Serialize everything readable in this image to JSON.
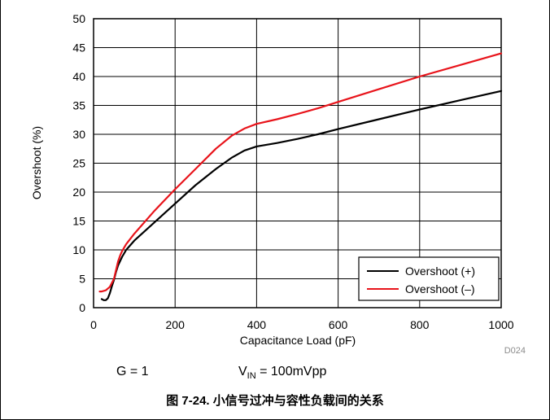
{
  "chart_data": {
    "type": "line",
    "xlabel": "Capacitance Load (pF)",
    "ylabel": "Overshoot (%)",
    "xlim": [
      0,
      1000
    ],
    "ylim": [
      0,
      50
    ],
    "x_ticks": [
      "0",
      "200",
      "400",
      "600",
      "800",
      "1000"
    ],
    "y_ticks": [
      "0",
      "5",
      "10",
      "15",
      "20",
      "25",
      "30",
      "35",
      "40",
      "45",
      "50"
    ],
    "grid": true,
    "legend_position": "bottom-right",
    "figure_code": "D024",
    "series": [
      {
        "name": "Overshoot (+)",
        "color": "#000000",
        "x": [
          20,
          25,
          30,
          35,
          40,
          45,
          50,
          55,
          60,
          70,
          80,
          100,
          150,
          200,
          250,
          300,
          340,
          370,
          400,
          450,
          500,
          550,
          600,
          700,
          800,
          900,
          1000
        ],
        "y": [
          1.5,
          1.3,
          1.3,
          1.6,
          2.5,
          3.7,
          4.8,
          6.2,
          7.3,
          8.8,
          10.0,
          11.6,
          14.8,
          18.0,
          21.2,
          24.0,
          26.0,
          27.2,
          27.9,
          28.5,
          29.2,
          30.0,
          30.9,
          32.6,
          34.3,
          35.9,
          37.5
        ]
      },
      {
        "name": "Overshoot (–)",
        "color": "#e8141b",
        "x": [
          15,
          20,
          30,
          40,
          50,
          55,
          60,
          65,
          70,
          80,
          100,
          150,
          200,
          250,
          300,
          340,
          370,
          400,
          450,
          500,
          550,
          600,
          700,
          800,
          900,
          1000
        ],
        "y": [
          2.8,
          2.8,
          3.0,
          3.6,
          5.0,
          6.5,
          8.0,
          9.0,
          9.8,
          11.0,
          12.8,
          16.8,
          20.5,
          24.0,
          27.5,
          29.8,
          31.0,
          31.8,
          32.6,
          33.5,
          34.5,
          35.6,
          37.8,
          40.0,
          42.0,
          44.0
        ]
      }
    ]
  },
  "conditions": {
    "gain": "G = 1",
    "vin_main": "V",
    "vin_sub": "IN",
    "vin_value": " = 100mVpp"
  },
  "caption": "图 7-24. 小信号过冲与容性负载间的关系"
}
